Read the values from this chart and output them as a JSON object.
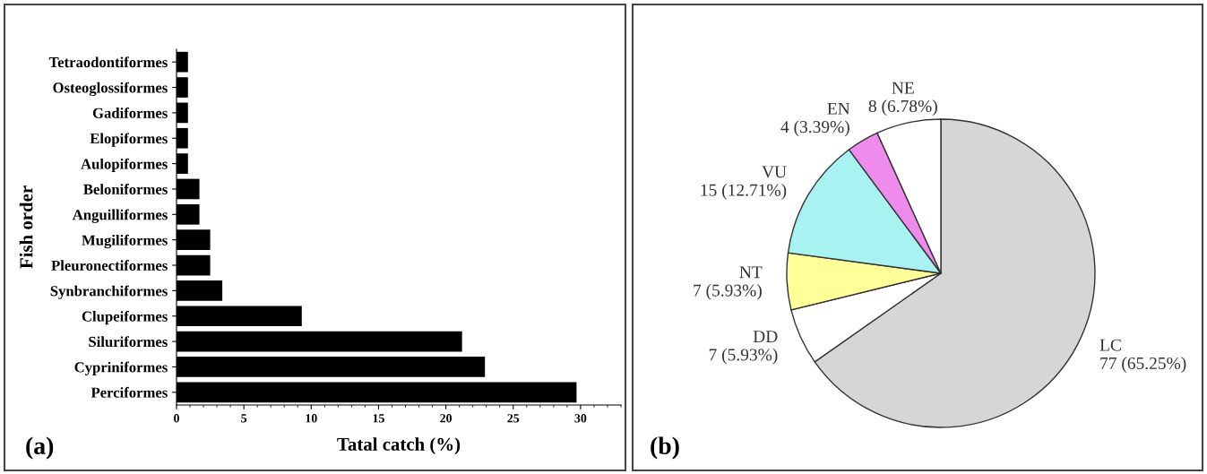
{
  "chart_data": [
    {
      "type": "bar",
      "orientation": "horizontal",
      "xlabel": "Tatal catch (%)",
      "ylabel": "Fish order",
      "categories": [
        "Tetraodontiformes",
        "Osteoglossiformes",
        "Gadiformes",
        "Elopiformes",
        "Aulopiformes",
        "Beloniformes",
        "Anguilliformes",
        "Mugiliformes",
        "Pleuronectiformes",
        "Synbranchiformes",
        "Clupeiformes",
        "Siluriformes",
        "Cypriniformes",
        "Perciformes"
      ],
      "values": [
        0.85,
        0.85,
        0.85,
        0.85,
        0.85,
        1.7,
        1.7,
        2.5,
        2.5,
        3.4,
        9.3,
        21.2,
        22.9,
        29.7
      ],
      "color": "#000000",
      "xlim": [
        0,
        33
      ],
      "xticks": [
        0,
        5,
        10,
        15,
        20,
        25,
        30
      ],
      "grid": false,
      "annotations": [
        "(a)"
      ]
    },
    {
      "type": "pie",
      "categories": [
        "LC",
        "DD",
        "NT",
        "VU",
        "EN",
        "NE"
      ],
      "values": [
        77,
        7,
        7,
        15,
        4,
        8
      ],
      "value_labels": [
        "77 (65.25%)",
        "7 (5.93%)",
        "7 (5.93%)",
        "15 (12.71%)",
        "4 (3.39%)",
        "8 (6.78%)"
      ],
      "colors": [
        "#d6d6d6",
        "#ffffff",
        "#ffff99",
        "#a8f2f2",
        "#ee8cee",
        "#ffffff"
      ],
      "annotations": [
        "(b)"
      ]
    }
  ]
}
